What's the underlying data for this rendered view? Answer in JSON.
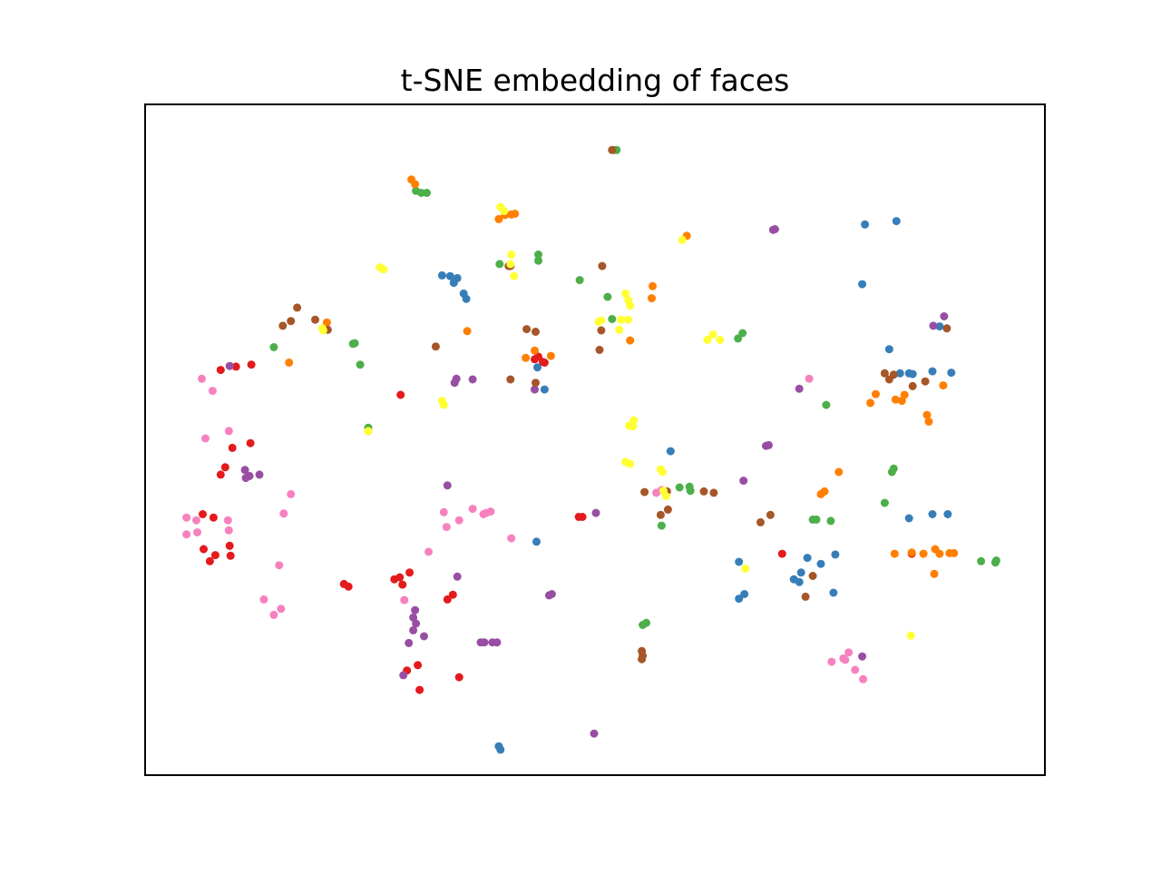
{
  "chart_data": {
    "type": "scatter",
    "title": "t-SNE embedding of faces",
    "xlabel": "",
    "ylabel": "",
    "axes_ticks": false,
    "grid": false,
    "legend": false,
    "xlim": [
      0,
      1000
    ],
    "ylim": [
      0,
      1000
    ],
    "series": [
      {
        "color": "#e41a1c",
        "points": [
          [
            84,
            604
          ],
          [
            101,
            609
          ],
          [
            118,
            612
          ],
          [
            97,
            488
          ],
          [
            84,
            448
          ],
          [
            89,
            459
          ],
          [
            117,
            495
          ],
          [
            64,
            389
          ],
          [
            76,
            384
          ],
          [
            94,
            342
          ],
          [
            65,
            337
          ],
          [
            78,
            328
          ],
          [
            95,
            327
          ],
          [
            72,
            319
          ],
          [
            226,
            281
          ],
          [
            221,
            285
          ],
          [
            284,
            567
          ],
          [
            294,
            302
          ],
          [
            286,
            284
          ],
          [
            336,
            262
          ],
          [
            342,
            269
          ],
          [
            349,
            146
          ],
          [
            305,
            127
          ],
          [
            303,
            164
          ],
          [
            291,
            156
          ],
          [
            283,
            295
          ],
          [
            277,
            292
          ],
          [
            486,
            385
          ],
          [
            482,
            385
          ],
          [
            708,
            330
          ],
          [
            442,
            616
          ],
          [
            444,
            615
          ],
          [
            433,
            620
          ],
          [
            437,
            624
          ],
          [
            852,
            330
          ]
        ]
      },
      {
        "color": "#377eb8",
        "points": [
          [
            343,
            734
          ],
          [
            330,
            745
          ],
          [
            339,
            744
          ],
          [
            347,
            741
          ],
          [
            354,
            718
          ],
          [
            357,
            710
          ],
          [
            436,
            608
          ],
          [
            444,
            575
          ],
          [
            584,
            483
          ],
          [
            797,
            732
          ],
          [
            800,
            821
          ],
          [
            835,
            826
          ],
          [
            875,
            389
          ],
          [
            892,
            389
          ],
          [
            849,
            383
          ],
          [
            827,
            635
          ],
          [
            839,
            599
          ],
          [
            849,
            599
          ],
          [
            853,
            598
          ],
          [
            875,
            602
          ],
          [
            896,
            600
          ],
          [
            767,
            329
          ],
          [
            751,
            315
          ],
          [
            736,
            324
          ],
          [
            660,
            318
          ],
          [
            666,
            270
          ],
          [
            660,
            263
          ],
          [
            729,
            302
          ],
          [
            721,
            292
          ],
          [
            727,
            288
          ],
          [
            883,
            669
          ],
          [
            393,
            43
          ],
          [
            395,
            38
          ],
          [
            435,
            348
          ],
          [
            765,
            272
          ]
        ]
      },
      {
        "color": "#4daf4a",
        "points": [
          [
            301,
            871
          ],
          [
            307,
            868
          ],
          [
            313,
            868
          ],
          [
            394,
            762
          ],
          [
            437,
            776
          ],
          [
            437,
            767
          ],
          [
            524,
            932
          ],
          [
            521,
            932
          ],
          [
            143,
            638
          ],
          [
            239,
            612
          ],
          [
            233,
            644
          ],
          [
            231,
            643
          ],
          [
            483,
            738
          ],
          [
            514,
            713
          ],
          [
            519,
            680
          ],
          [
            659,
            651
          ],
          [
            664,
            659
          ],
          [
            757,
            552
          ],
          [
            574,
            372
          ],
          [
            606,
            424
          ],
          [
            594,
            429
          ],
          [
            762,
            379
          ],
          [
            822,
            406
          ],
          [
            946,
            320
          ],
          [
            945,
            317
          ],
          [
            742,
            381
          ],
          [
            746,
            381
          ],
          [
            830,
            452
          ],
          [
            248,
            518
          ],
          [
            248,
            513
          ],
          [
            557,
            227
          ],
          [
            553,
            224
          ],
          [
            605,
            430
          ],
          [
            832,
            457
          ],
          [
            929,
            319
          ]
        ]
      },
      {
        "color": "#ff7f00",
        "points": [
          [
            296,
            888
          ],
          [
            300,
            881
          ],
          [
            393,
            829
          ],
          [
            400,
            835
          ],
          [
            407,
            836
          ],
          [
            411,
            837
          ],
          [
            602,
            804
          ],
          [
            358,
            662
          ],
          [
            160,
            615
          ],
          [
            202,
            675
          ],
          [
            433,
            633
          ],
          [
            423,
            622
          ],
          [
            451,
            625
          ],
          [
            564,
            729
          ],
          [
            563,
            711
          ],
          [
            539,
            648
          ],
          [
            806,
            555
          ],
          [
            812,
            568
          ],
          [
            771,
            452
          ],
          [
            755,
            423
          ],
          [
            841,
            558
          ],
          [
            834,
            560
          ],
          [
            887,
            581
          ],
          [
            869,
            537
          ],
          [
            871,
            527
          ],
          [
            844,
            567
          ],
          [
            751,
            419
          ],
          [
            878,
            337
          ],
          [
            852,
            332
          ],
          [
            833,
            330
          ],
          [
            877,
            300
          ],
          [
            899,
            331
          ],
          [
            865,
            330
          ],
          [
            883,
            330
          ],
          [
            894,
            331
          ]
        ]
      },
      {
        "color": "#984ea3",
        "points": [
          [
            364,
            590
          ],
          [
            346,
            591
          ],
          [
            433,
            575
          ],
          [
            111,
            455
          ],
          [
            112,
            443
          ],
          [
            127,
            448
          ],
          [
            116,
            446
          ],
          [
            94,
            610
          ],
          [
            698,
            813
          ],
          [
            700,
            814
          ],
          [
            727,
            576
          ],
          [
            690,
            491
          ],
          [
            693,
            492
          ],
          [
            665,
            439
          ],
          [
            501,
            391
          ],
          [
            452,
            270
          ],
          [
            449,
            268
          ],
          [
            300,
            246
          ],
          [
            298,
            235
          ],
          [
            301,
            226
          ],
          [
            310,
            207
          ],
          [
            298,
            216
          ],
          [
            287,
            149
          ],
          [
            293,
            197
          ],
          [
            373,
            198
          ],
          [
            377,
            198
          ],
          [
            391,
            198
          ],
          [
            386,
            198
          ],
          [
            347,
            296
          ],
          [
            336,
            432
          ],
          [
            344,
            585
          ],
          [
            888,
            684
          ],
          [
            876,
            670
          ],
          [
            499,
            62
          ],
          [
            797,
            177
          ]
        ]
      },
      {
        "color": "#a65628",
        "points": [
          [
            519,
            932
          ],
          [
            508,
            759
          ],
          [
            169,
            697
          ],
          [
            162,
            677
          ],
          [
            153,
            670
          ],
          [
            189,
            679
          ],
          [
            203,
            664
          ],
          [
            406,
            759
          ],
          [
            404,
            759
          ],
          [
            434,
            585
          ],
          [
            406,
            590
          ],
          [
            424,
            665
          ],
          [
            434,
            661
          ],
          [
            505,
            634
          ],
          [
            580,
            423
          ],
          [
            632,
            421
          ],
          [
            621,
            423
          ],
          [
            695,
            388
          ],
          [
            684,
            377
          ],
          [
            581,
            396
          ],
          [
            573,
            388
          ],
          [
            734,
            266
          ],
          [
            742,
            297
          ],
          [
            822,
            599
          ],
          [
            827,
            590
          ],
          [
            832,
            597
          ],
          [
            867,
            587
          ],
          [
            891,
            666
          ],
          [
            552,
            185
          ],
          [
            553,
            178
          ],
          [
            552,
            173
          ],
          [
            323,
            639
          ],
          [
            507,
            663
          ],
          [
            555,
            422
          ],
          [
            853,
            580
          ]
        ]
      },
      {
        "color": "#f781bf",
        "points": [
          [
            46,
            384
          ],
          [
            57,
            380
          ],
          [
            58,
            362
          ],
          [
            46,
            359
          ],
          [
            93,
            365
          ],
          [
            92,
            380
          ],
          [
            67,
            502
          ],
          [
            93,
            513
          ],
          [
            63,
            591
          ],
          [
            75,
            573
          ],
          [
            132,
            262
          ],
          [
            151,
            248
          ],
          [
            143,
            239
          ],
          [
            149,
            313
          ],
          [
            162,
            419
          ],
          [
            154,
            390
          ],
          [
            288,
            261
          ],
          [
            364,
            397
          ],
          [
            379,
            391
          ],
          [
            376,
            389
          ],
          [
            349,
            380
          ],
          [
            335,
            370
          ],
          [
            315,
            333
          ],
          [
            407,
            353
          ],
          [
            332,
            392
          ],
          [
            384,
            393
          ],
          [
            574,
            425
          ],
          [
            789,
            157
          ],
          [
            798,
            143
          ],
          [
            776,
            174
          ],
          [
            778,
            172
          ],
          [
            782,
            183
          ],
          [
            763,
            169
          ],
          [
            738,
            591
          ],
          [
            568,
            421
          ]
        ]
      },
      {
        "color": "#ffff33",
        "points": [
          [
            395,
            847
          ],
          [
            399,
            841
          ],
          [
            261,
            757
          ],
          [
            265,
            754
          ],
          [
            407,
            776
          ],
          [
            406,
            762
          ],
          [
            410,
            744
          ],
          [
            198,
            663
          ],
          [
            197,
            666
          ],
          [
            248,
            513
          ],
          [
            542,
            520
          ],
          [
            538,
            521
          ],
          [
            543,
            529
          ],
          [
            330,
            558
          ],
          [
            332,
            552
          ],
          [
            534,
            467
          ],
          [
            539,
            464
          ],
          [
            573,
            456
          ],
          [
            575,
            452
          ],
          [
            576,
            424
          ],
          [
            579,
            416
          ],
          [
            631,
            657
          ],
          [
            639,
            649
          ],
          [
            504,
            676
          ],
          [
            539,
            700
          ],
          [
            537,
            708
          ],
          [
            534,
            718
          ],
          [
            529,
            679
          ],
          [
            537,
            679
          ],
          [
            507,
            678
          ],
          [
            527,
            664
          ],
          [
            625,
            649
          ],
          [
            667,
            308
          ],
          [
            597,
            798
          ],
          [
            851,
            208
          ]
        ]
      }
    ]
  }
}
